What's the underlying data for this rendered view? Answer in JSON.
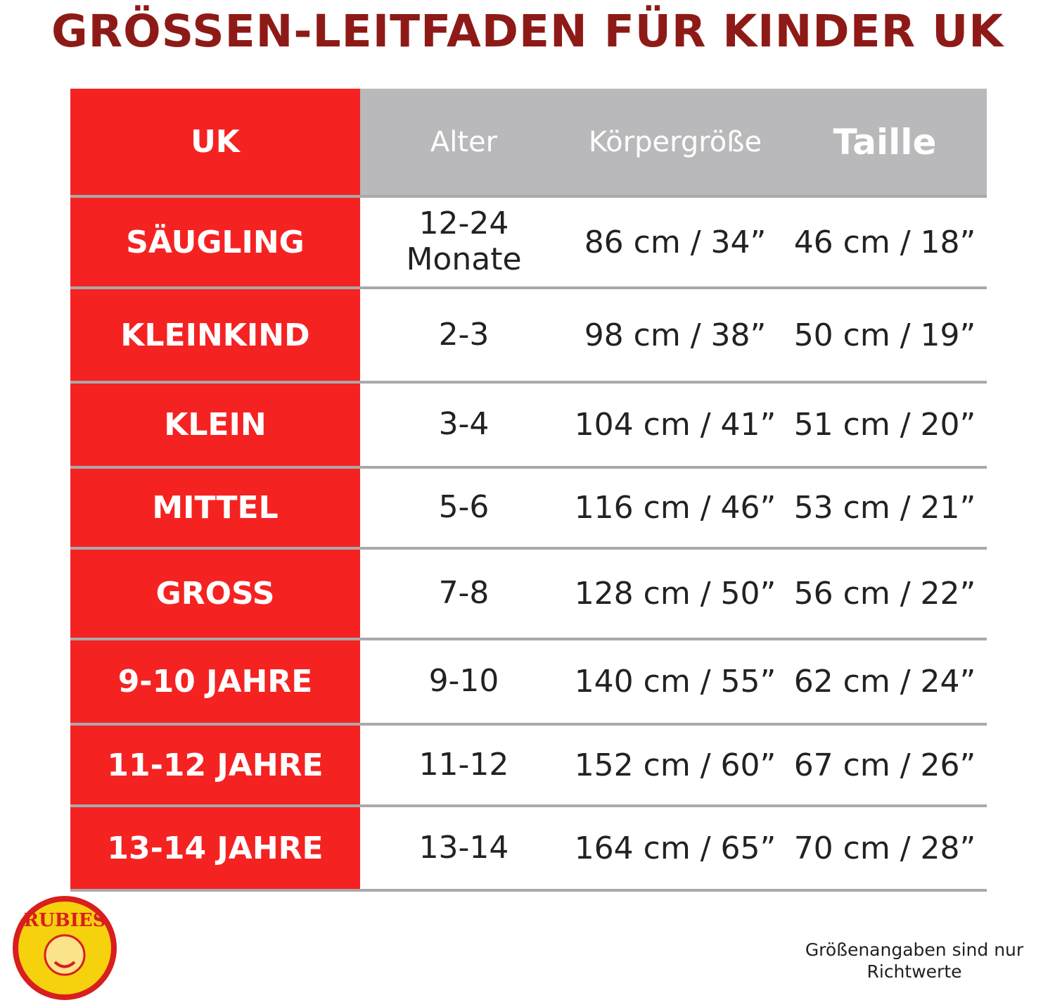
{
  "header": {
    "title": "GRÖSSEN-LEITFADEN FÜR KINDER UK"
  },
  "table": {
    "columns": [
      "UK",
      "Alter",
      "Körpergröße",
      "Taille"
    ],
    "rows": [
      [
        "SÄUGLING",
        "12-24 Monate",
        "86 cm / 34”",
        "46 cm / 18”"
      ],
      [
        "KLEINKIND",
        "2-3",
        "98 cm / 38”",
        "50 cm / 19”"
      ],
      [
        "KLEIN",
        "3-4",
        "104 cm / 41”",
        "51 cm / 20”"
      ],
      [
        "MITTEL",
        "5-6",
        "116 cm / 46”",
        "53 cm / 21”"
      ],
      [
        "GROSS",
        "7-8",
        "128 cm / 50”",
        "56 cm / 22”"
      ],
      [
        "9-10 JAHRE",
        "9-10",
        "140 cm / 55”",
        "62 cm / 24”"
      ],
      [
        "11-12 JAHRE",
        "11-12",
        "152 cm / 60”",
        "67 cm / 26”"
      ],
      [
        "13-14 JAHRE",
        "13-14",
        "164 cm / 65”",
        "70 cm / 28”"
      ]
    ]
  },
  "logo": {
    "text": "RUBIES"
  },
  "footer": {
    "note": "Größenangaben sind nur Richtwerte"
  }
}
